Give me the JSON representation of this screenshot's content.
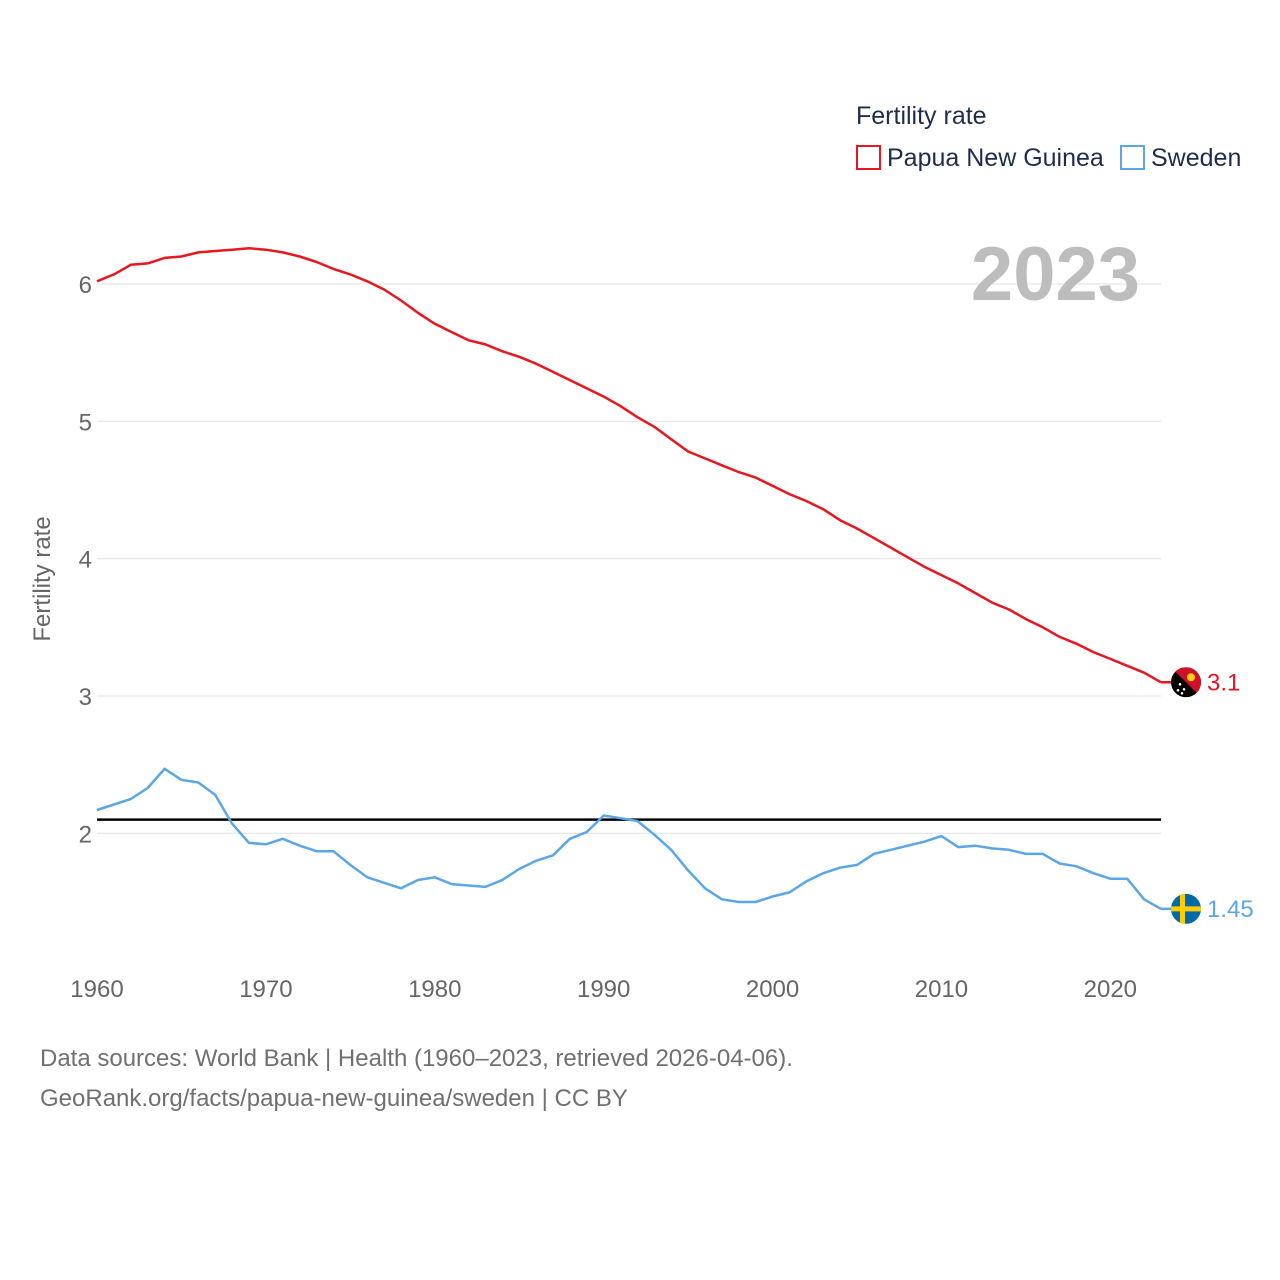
{
  "chart_data": {
    "type": "line",
    "ylabel": "Fertility rate",
    "xlabel": "",
    "xlim": [
      1960,
      2023
    ],
    "ylim": [
      1.2,
      6.6
    ],
    "yticks": [
      2,
      3,
      4,
      5,
      6
    ],
    "xticks": [
      1960,
      1970,
      1980,
      1990,
      2000,
      2010,
      2020
    ],
    "reference_line": 2.1,
    "year_overlay": "2023",
    "legend": {
      "title": "Fertility rate",
      "placement": "top-right"
    },
    "series": [
      {
        "name": "Papua New Guinea",
        "color": "#e8171f",
        "end_label": "3.1",
        "flag": "papua-new-guinea-flag",
        "x": [
          1960,
          1961,
          1962,
          1963,
          1964,
          1965,
          1966,
          1967,
          1968,
          1969,
          1970,
          1971,
          1972,
          1973,
          1974,
          1975,
          1976,
          1977,
          1978,
          1979,
          1980,
          1981,
          1982,
          1983,
          1984,
          1985,
          1986,
          1987,
          1988,
          1989,
          1990,
          1991,
          1992,
          1993,
          1994,
          1995,
          1996,
          1997,
          1998,
          1999,
          2000,
          2001,
          2002,
          2003,
          2004,
          2005,
          2006,
          2007,
          2008,
          2009,
          2010,
          2011,
          2012,
          2013,
          2014,
          2015,
          2016,
          2017,
          2018,
          2019,
          2020,
          2021,
          2022,
          2023
        ],
        "values": [
          6.02,
          6.07,
          6.14,
          6.15,
          6.19,
          6.2,
          6.23,
          6.24,
          6.25,
          6.26,
          6.25,
          6.23,
          6.2,
          6.16,
          6.11,
          6.07,
          6.02,
          5.96,
          5.88,
          5.79,
          5.71,
          5.65,
          5.59,
          5.56,
          5.51,
          5.47,
          5.42,
          5.36,
          5.3,
          5.24,
          5.18,
          5.11,
          5.03,
          4.96,
          4.87,
          4.78,
          4.73,
          4.68,
          4.63,
          4.59,
          4.53,
          4.47,
          4.42,
          4.36,
          4.28,
          4.22,
          4.15,
          4.08,
          4.01,
          3.94,
          3.88,
          3.82,
          3.75,
          3.68,
          3.63,
          3.56,
          3.5,
          3.43,
          3.38,
          3.32,
          3.27,
          3.22,
          3.17,
          3.1
        ]
      },
      {
        "name": "Sweden",
        "color": "#5ba6e6",
        "end_label": "1.45",
        "flag": "sweden-flag",
        "x": [
          1960,
          1961,
          1962,
          1963,
          1964,
          1965,
          1966,
          1967,
          1968,
          1969,
          1970,
          1971,
          1972,
          1973,
          1974,
          1975,
          1976,
          1977,
          1978,
          1979,
          1980,
          1981,
          1982,
          1983,
          1984,
          1985,
          1986,
          1987,
          1988,
          1989,
          1990,
          1991,
          1992,
          1993,
          1994,
          1995,
          1996,
          1997,
          1998,
          1999,
          2000,
          2001,
          2002,
          2003,
          2004,
          2005,
          2006,
          2007,
          2008,
          2009,
          2010,
          2011,
          2012,
          2013,
          2014,
          2015,
          2016,
          2017,
          2018,
          2019,
          2020,
          2021,
          2022,
          2023
        ],
        "values": [
          2.17,
          2.21,
          2.25,
          2.33,
          2.47,
          2.39,
          2.37,
          2.28,
          2.07,
          1.93,
          1.92,
          1.96,
          1.91,
          1.87,
          1.87,
          1.77,
          1.68,
          1.64,
          1.6,
          1.66,
          1.68,
          1.63,
          1.62,
          1.61,
          1.66,
          1.74,
          1.8,
          1.84,
          1.96,
          2.01,
          2.13,
          2.11,
          2.09,
          1.99,
          1.88,
          1.73,
          1.6,
          1.52,
          1.5,
          1.5,
          1.54,
          1.57,
          1.65,
          1.71,
          1.75,
          1.77,
          1.85,
          1.88,
          1.91,
          1.94,
          1.98,
          1.9,
          1.91,
          1.89,
          1.88,
          1.85,
          1.85,
          1.78,
          1.76,
          1.71,
          1.67,
          1.67,
          1.52,
          1.45
        ]
      }
    ]
  },
  "footer": {
    "line1": "Data sources: World Bank | Health (1960–2023, retrieved 2026-04-06).",
    "line2": "GeoRank.org/facts/papua-new-guinea/sweden | CC BY"
  }
}
